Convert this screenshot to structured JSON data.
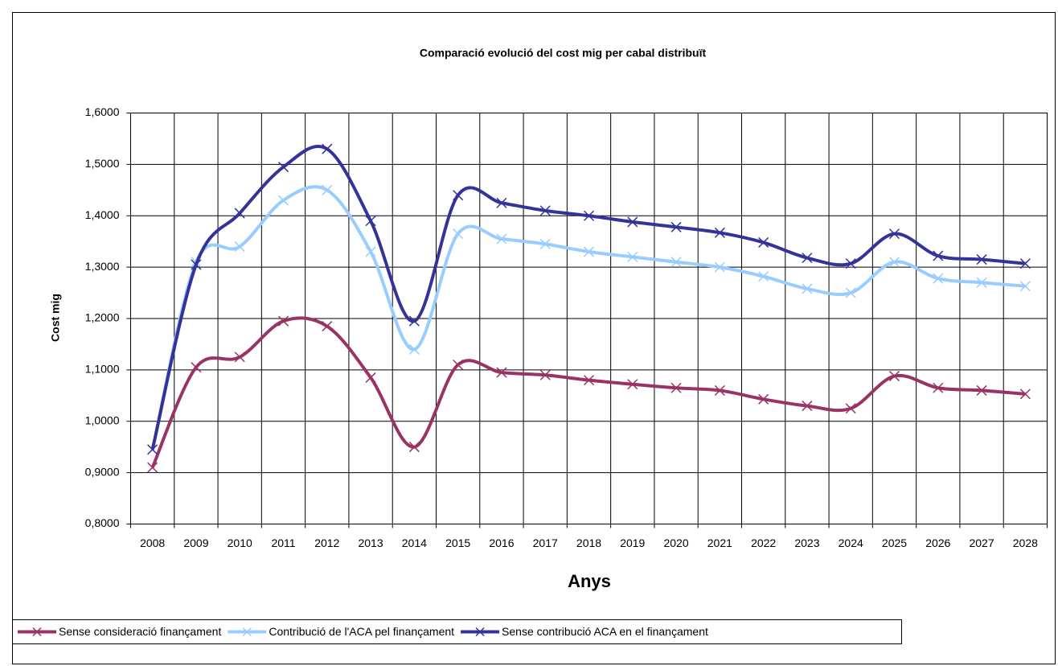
{
  "chart_data": {
    "type": "line",
    "title": "Comparació evolució del cost mig per cabal distribuït",
    "x_label": "Anys",
    "y_label": "Cost mig",
    "categories": [
      "2008",
      "2009",
      "2010",
      "2011",
      "2012",
      "2013",
      "2014",
      "2015",
      "2016",
      "2017",
      "2018",
      "2019",
      "2020",
      "2021",
      "2022",
      "2023",
      "2024",
      "2025",
      "2026",
      "2027",
      "2028"
    ],
    "series": [
      {
        "name": "Sense consideració finançament",
        "color": "#993366",
        "values": [
          0.91,
          1.105,
          1.125,
          1.195,
          1.185,
          1.085,
          0.95,
          1.11,
          1.095,
          1.09,
          1.08,
          1.072,
          1.065,
          1.06,
          1.043,
          1.03,
          1.025,
          1.088,
          1.065,
          1.06,
          1.053
        ]
      },
      {
        "name": "Contribució de l'ACA pel finançament",
        "color": "#99ccff",
        "values": [
          0.945,
          1.31,
          1.34,
          1.43,
          1.45,
          1.33,
          1.14,
          1.365,
          1.355,
          1.345,
          1.33,
          1.32,
          1.31,
          1.3,
          1.282,
          1.258,
          1.25,
          1.31,
          1.278,
          1.27,
          1.263
        ]
      },
      {
        "name": "Sense contribució ACA en el finançament",
        "color": "#333399",
        "values": [
          0.945,
          1.305,
          1.405,
          1.495,
          1.53,
          1.39,
          1.195,
          1.44,
          1.425,
          1.41,
          1.4,
          1.388,
          1.378,
          1.367,
          1.348,
          1.318,
          1.307,
          1.365,
          1.322,
          1.315,
          1.307
        ]
      }
    ],
    "ylim": [
      0.8,
      1.6
    ],
    "yticks": [
      {
        "value": 0.8,
        "label": "0,8000"
      },
      {
        "value": 0.9,
        "label": "0,9000"
      },
      {
        "value": 1.0,
        "label": "1,0000"
      },
      {
        "value": 1.1,
        "label": "1,1000"
      },
      {
        "value": 1.2,
        "label": "1,2000"
      },
      {
        "value": 1.3,
        "label": "1,3000"
      },
      {
        "value": 1.4,
        "label": "1,4000"
      },
      {
        "value": 1.5,
        "label": "1,5000"
      },
      {
        "value": 1.6,
        "label": "1,6000"
      }
    ],
    "grid": true,
    "smooth": true,
    "legend": "bottom"
  }
}
